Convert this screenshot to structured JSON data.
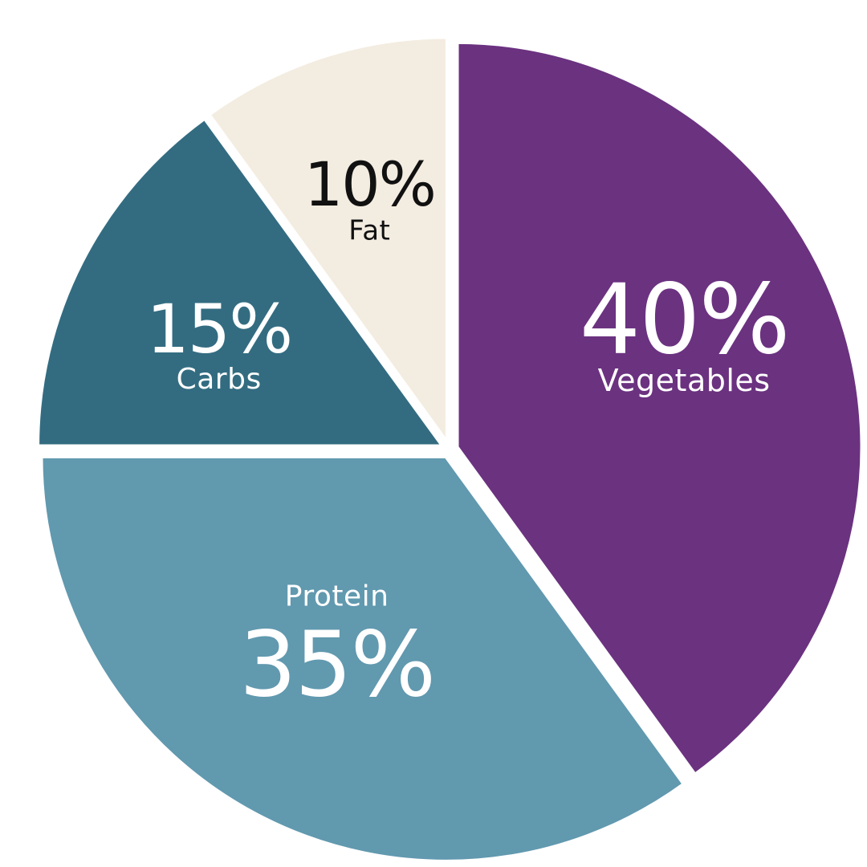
{
  "chart_data": {
    "type": "pie",
    "title": "",
    "slices": [
      {
        "label": "Vegetables",
        "value": 40,
        "value_label": "40%",
        "color": "#6B3280",
        "text_color": "#FFFFFF"
      },
      {
        "label": "Protein",
        "value": 35,
        "value_label": "35%",
        "color": "#6199AF",
        "text_color": "#FFFFFF"
      },
      {
        "label": "Carbs",
        "value": 15,
        "value_label": "15%",
        "color": "#336C81",
        "text_color": "#FFFFFF"
      },
      {
        "label": "Fat",
        "value": 10,
        "value_label": "10%",
        "color": "#F3ECE0",
        "text_color": "#111111"
      }
    ]
  },
  "colors": {
    "background": "#FFFFFF",
    "separator": "#FFFFFF"
  }
}
